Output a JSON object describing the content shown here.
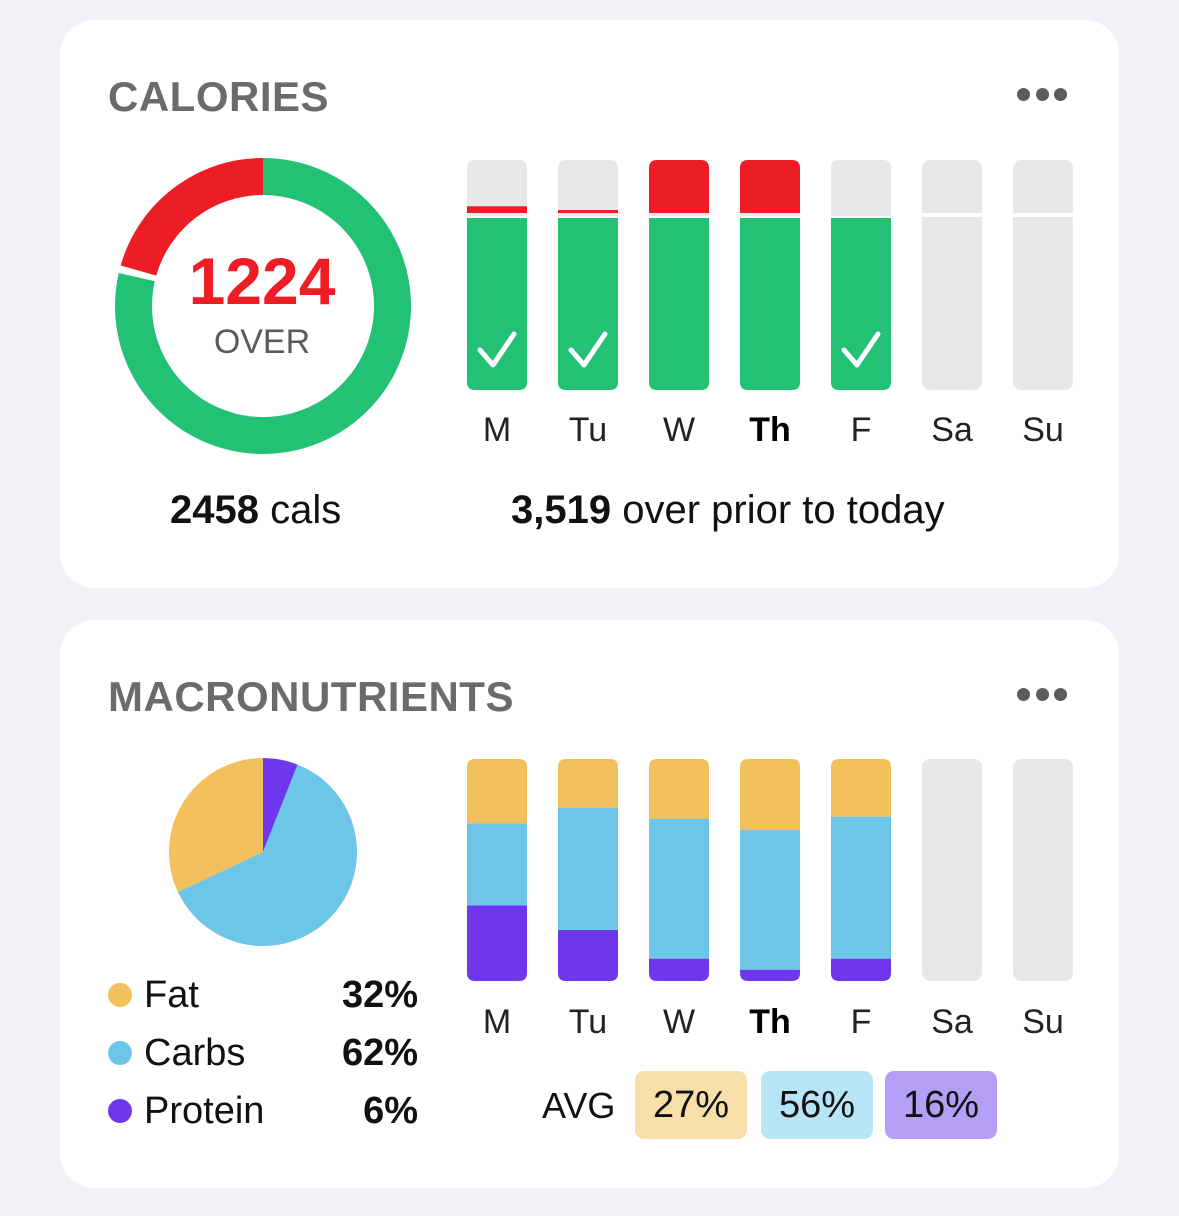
{
  "colors": {
    "background": "#f1f0f7",
    "card": "#ffffff",
    "green": "#22c174",
    "red": "#ec1d25",
    "empty_bar": "#e8e8e8",
    "fat": "#f2c05c",
    "carbs": "#6dc6e8",
    "protein": "#6e37ee",
    "fat_pill": "#f8dfaa",
    "carbs_pill": "#b8e5f6",
    "protein_pill": "#b59ef6"
  },
  "days": [
    {
      "label": "M",
      "today": false
    },
    {
      "label": "Tu",
      "today": false
    },
    {
      "label": "W",
      "today": false
    },
    {
      "label": "Th",
      "today": true
    },
    {
      "label": "F",
      "today": false
    },
    {
      "label": "Sa",
      "today": false
    },
    {
      "label": "Su",
      "today": false
    }
  ],
  "calories": {
    "title": "CALORIES",
    "ring_value": "1224",
    "ring_label": "OVER",
    "ring_over_fraction": 0.15,
    "total_value": "2458",
    "total_unit": " cals",
    "summary_value": "3,519",
    "summary_text": " over prior to today",
    "bars": [
      {
        "day": "M",
        "over_fraction": 0.03,
        "check": true
      },
      {
        "day": "Tu",
        "over_fraction": 0.01,
        "check": true
      },
      {
        "day": "W",
        "over_fraction": 0.25,
        "check": false
      },
      {
        "day": "Th",
        "over_fraction": 0.25,
        "check": false
      },
      {
        "day": "F",
        "over_fraction": 0,
        "check": true
      },
      {
        "day": "Sa",
        "over_fraction": null,
        "check": false
      },
      {
        "day": "Su",
        "over_fraction": null,
        "check": false
      }
    ]
  },
  "macronutrients": {
    "title": "MACRONUTRIENTS",
    "pie": [
      {
        "name": "Protein",
        "fraction": 0.06,
        "color_key": "protein"
      },
      {
        "name": "Carbs",
        "fraction": 0.62,
        "color_key": "carbs"
      },
      {
        "name": "Fat",
        "fraction": 0.32,
        "color_key": "fat"
      }
    ],
    "legend": [
      {
        "name": "Fat",
        "pct": "32%",
        "color_key": "fat"
      },
      {
        "name": "Carbs",
        "pct": "62%",
        "color_key": "carbs"
      },
      {
        "name": "Protein",
        "pct": "6%",
        "color_key": "protein"
      }
    ],
    "bars": [
      {
        "day": "M",
        "fat": 0.29,
        "carbs": 0.37,
        "protein": 0.34
      },
      {
        "day": "Tu",
        "fat": 0.22,
        "carbs": 0.55,
        "protein": 0.23
      },
      {
        "day": "W",
        "fat": 0.27,
        "carbs": 0.63,
        "protein": 0.1
      },
      {
        "day": "Th",
        "fat": 0.32,
        "carbs": 0.63,
        "protein": 0.05
      },
      {
        "day": "F",
        "fat": 0.26,
        "carbs": 0.64,
        "protein": 0.1
      },
      {
        "day": "Sa",
        "fat": null,
        "carbs": null,
        "protein": null
      },
      {
        "day": "Su",
        "fat": null,
        "carbs": null,
        "protein": null
      }
    ],
    "avg_label": "AVG",
    "avg": {
      "fat": "27%",
      "carbs": "56%",
      "protein": "16%"
    }
  }
}
